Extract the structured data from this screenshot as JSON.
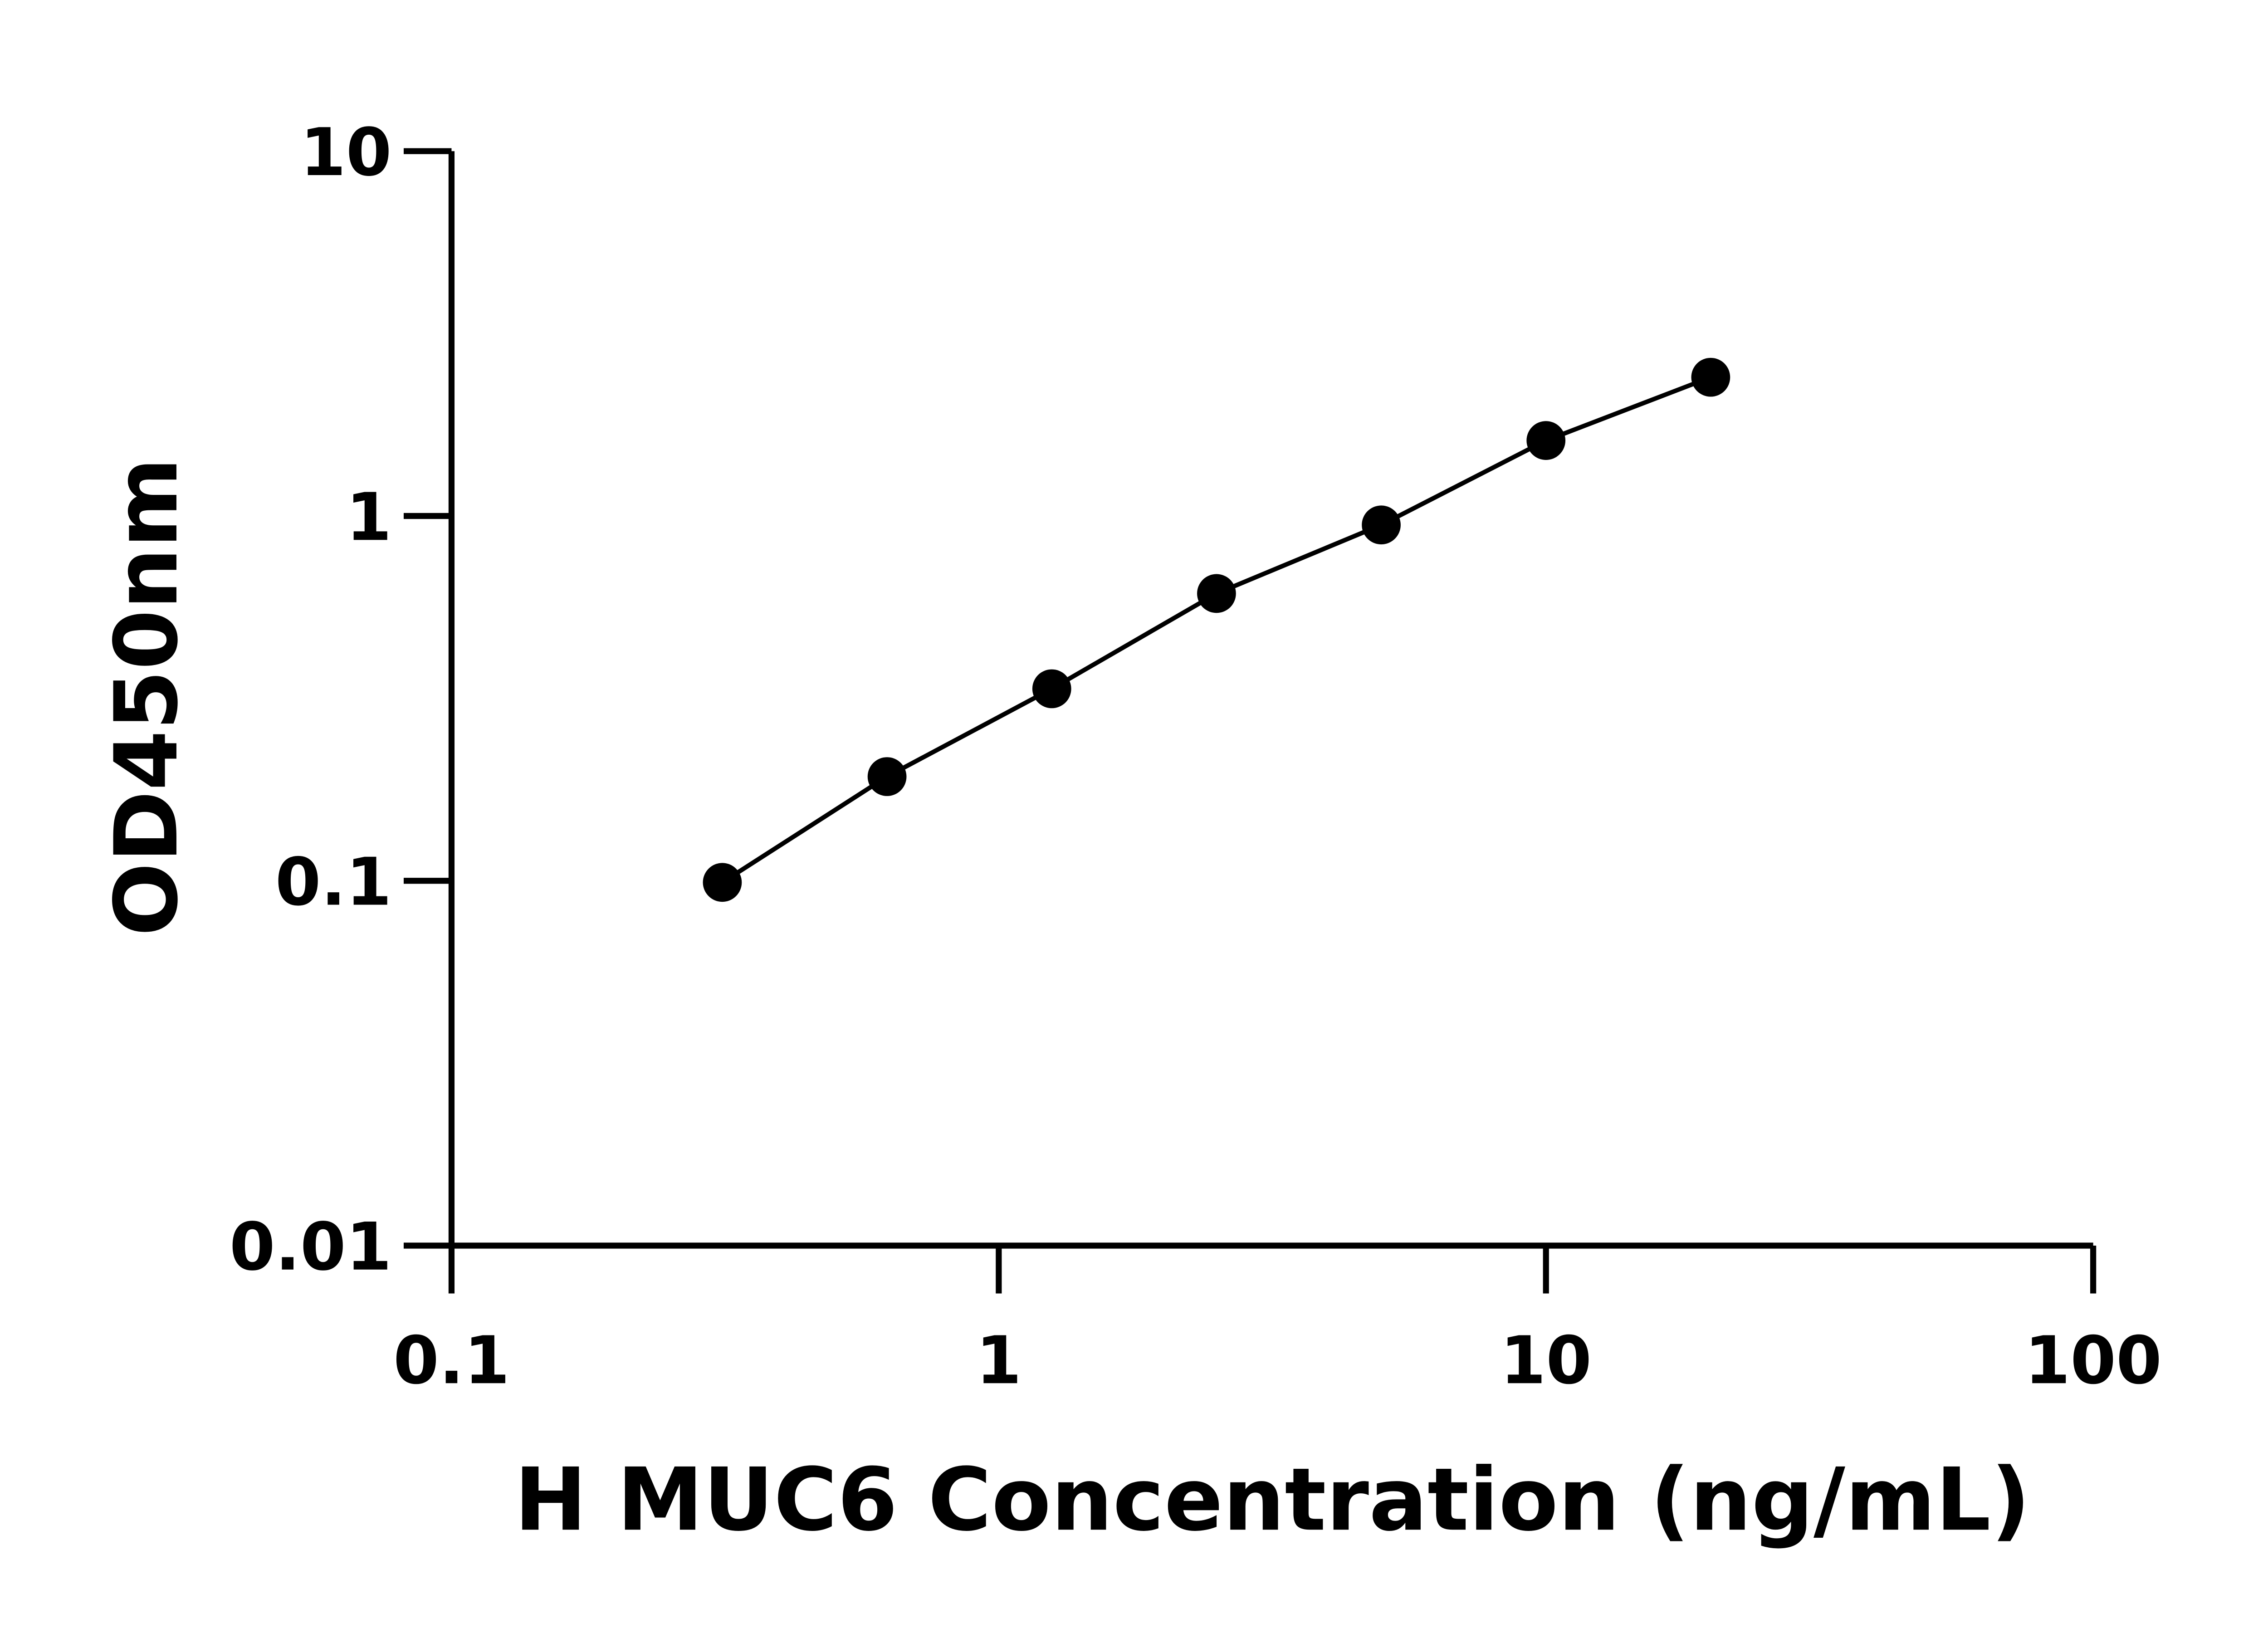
{
  "chart_data": {
    "type": "line",
    "title": "",
    "xlabel": "H MUC6 Concentration (ng/mL)",
    "ylabel": "OD450nm",
    "x_scale": "log",
    "y_scale": "log",
    "xlim": [
      0.1,
      100
    ],
    "ylim": [
      0.01,
      10
    ],
    "x_ticks": [
      "0.1",
      "1",
      "10",
      "100"
    ],
    "y_ticks": [
      "0.01",
      "0.1",
      "1",
      "10"
    ],
    "grid": false,
    "series": [
      {
        "x": [
          0.3125,
          0.625,
          1.25,
          2.5,
          5,
          10,
          20
        ],
        "y": [
          0.099,
          0.193,
          0.336,
          0.613,
          0.945,
          1.61,
          2.4
        ],
        "marker": "circle",
        "color": "#000000"
      }
    ]
  }
}
